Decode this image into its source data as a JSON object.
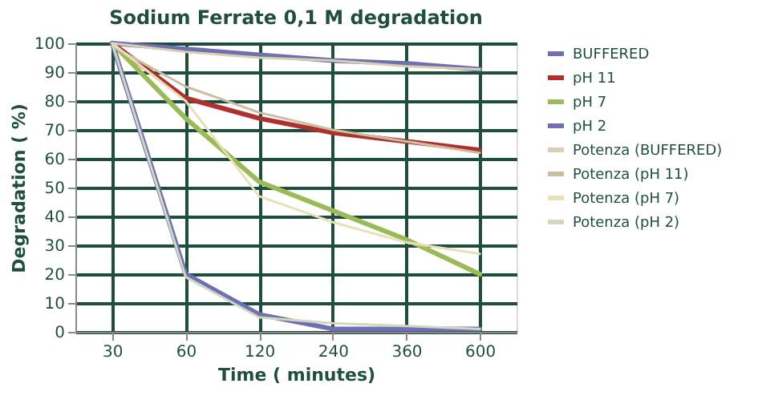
{
  "chart_data": {
    "type": "line",
    "title": "Sodium Ferrate 0,1 M degradation",
    "xlabel": "Time ( minutes)",
    "ylabel": "Degradation  ( %)",
    "categories": [
      "30",
      "60",
      "120",
      "240",
      "360",
      "600"
    ],
    "ylim": [
      0,
      100
    ],
    "yticks": [
      0,
      10,
      20,
      30,
      40,
      50,
      60,
      70,
      80,
      90,
      100
    ],
    "grid": true,
    "legend": "right",
    "line_style": "solid",
    "marker": "none",
    "series": [
      {
        "name": "BUFFERED",
        "color": "#7070b0",
        "values": [
          100,
          98,
          96,
          94,
          93,
          91
        ]
      },
      {
        "name": "pH 11",
        "color": "#b03030",
        "values": [
          100,
          81,
          74,
          69,
          66,
          63
        ]
      },
      {
        "name": "pH 7",
        "color": "#9bbb59",
        "values": [
          100,
          74,
          52,
          42,
          32,
          20
        ]
      },
      {
        "name": "pH 2",
        "color": "#6f6fb5",
        "values": [
          100,
          20,
          6,
          1,
          1,
          1
        ]
      },
      {
        "name": "Potenza (BUFFERED)",
        "color": "#d8d0b0",
        "values": [
          100,
          97,
          95,
          94,
          92,
          91
        ]
      },
      {
        "name": "Potenza (pH 11)",
        "color": "#c8c0a0",
        "values": [
          99,
          85,
          76,
          70,
          66,
          62
        ]
      },
      {
        "name": "Potenza (pH 7)",
        "color": "#e8e0b8",
        "values": [
          100,
          80,
          47,
          38,
          31,
          27
        ]
      },
      {
        "name": "Potenza (pH 2)",
        "color": "#d0d8c0",
        "values": [
          100,
          19,
          5,
          3,
          2,
          1
        ]
      }
    ]
  }
}
